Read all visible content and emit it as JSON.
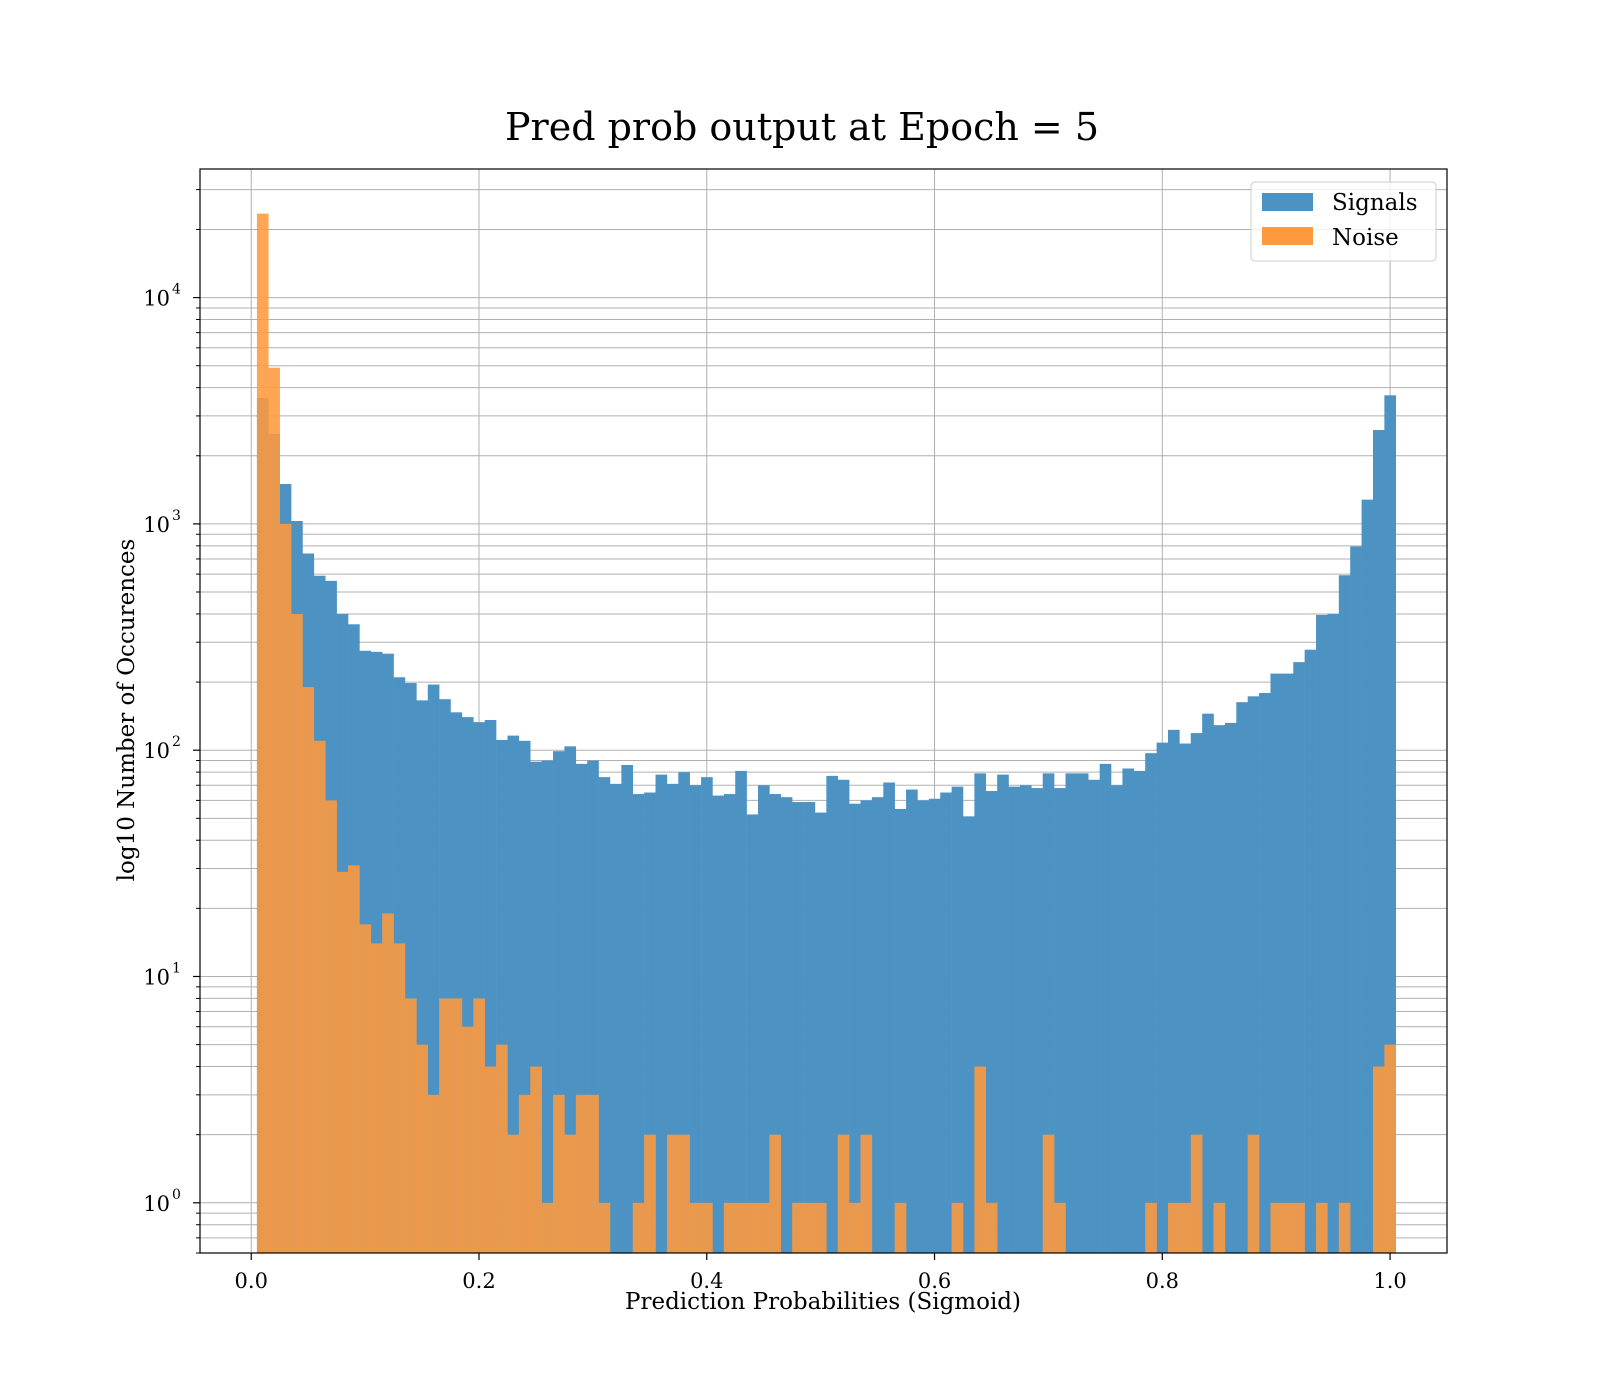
{
  "chart_data": {
    "type": "bar",
    "subtype": "histogram",
    "title": "Pred prob output at Epoch = 5",
    "xlabel": "Prediction Probabilities (Sigmoid)",
    "ylabel": "log10 Number of Occurences",
    "xlim": [
      -0.045,
      1.05
    ],
    "ylim": [
      0.6,
      37000
    ],
    "yscale": "log",
    "grid": true,
    "legend_position": "top-right",
    "bin_start": 0.005,
    "bin_width": 0.01,
    "xticks": [
      "0.0",
      "0.2",
      "0.4",
      "0.6",
      "0.8",
      "1.0"
    ],
    "xtick_values": [
      0.0,
      0.2,
      0.4,
      0.6,
      0.8,
      1.0
    ],
    "yticks": [
      {
        "value": 1,
        "base": "10",
        "exp": "0"
      },
      {
        "value": 10,
        "base": "10",
        "exp": "1"
      },
      {
        "value": 100,
        "base": "10",
        "exp": "2"
      },
      {
        "value": 1000,
        "base": "10",
        "exp": "3"
      },
      {
        "value": 10000,
        "base": "10",
        "exp": "4"
      }
    ],
    "series": [
      {
        "name": "Signals",
        "color": "#4c92c3",
        "values": [
          3600,
          2500,
          1500,
          1030,
          740,
          590,
          560,
          400,
          360,
          275,
          272,
          267,
          210,
          198,
          166,
          195,
          168,
          147,
          140,
          133,
          136,
          111,
          116,
          110,
          89,
          90,
          99,
          104,
          87,
          90,
          76,
          71,
          86,
          64,
          65,
          78,
          71,
          80,
          70,
          76,
          63,
          64,
          81,
          52,
          70,
          64,
          62,
          59,
          59,
          53,
          77,
          74,
          58,
          60,
          62,
          72,
          55,
          67,
          60,
          61,
          65,
          69,
          51,
          79,
          66,
          78,
          69,
          70,
          68,
          79,
          68,
          79,
          79,
          74,
          87,
          70,
          83,
          81,
          97,
          108,
          123,
          107,
          119,
          145,
          129,
          132,
          163,
          173,
          179,
          218,
          218,
          245,
          278,
          396,
          400,
          593,
          795,
          1280,
          2600,
          3700
        ]
      },
      {
        "name": "Noise",
        "color": "#ff9a3c",
        "values": [
          23500,
          4900,
          1000,
          400,
          190,
          110,
          60,
          29,
          31,
          17,
          14,
          19,
          14,
          8,
          5,
          3,
          8,
          8,
          6,
          8,
          4,
          5,
          2,
          3,
          4,
          1,
          3,
          2,
          3,
          3,
          1,
          0,
          0,
          1,
          2,
          0,
          2,
          2,
          1,
          1,
          0,
          1,
          1,
          1,
          1,
          2,
          0,
          1,
          1,
          1,
          0,
          2,
          1,
          2,
          0,
          0,
          1,
          0,
          0,
          0,
          0,
          1,
          0,
          4,
          1,
          0,
          0,
          0,
          0,
          2,
          1,
          0,
          0,
          0,
          0,
          0,
          0,
          0,
          1,
          0,
          1,
          1,
          2,
          0,
          1,
          0,
          0,
          2,
          0,
          1,
          1,
          1,
          0,
          1,
          0,
          1,
          0,
          0,
          4,
          5
        ]
      }
    ]
  }
}
